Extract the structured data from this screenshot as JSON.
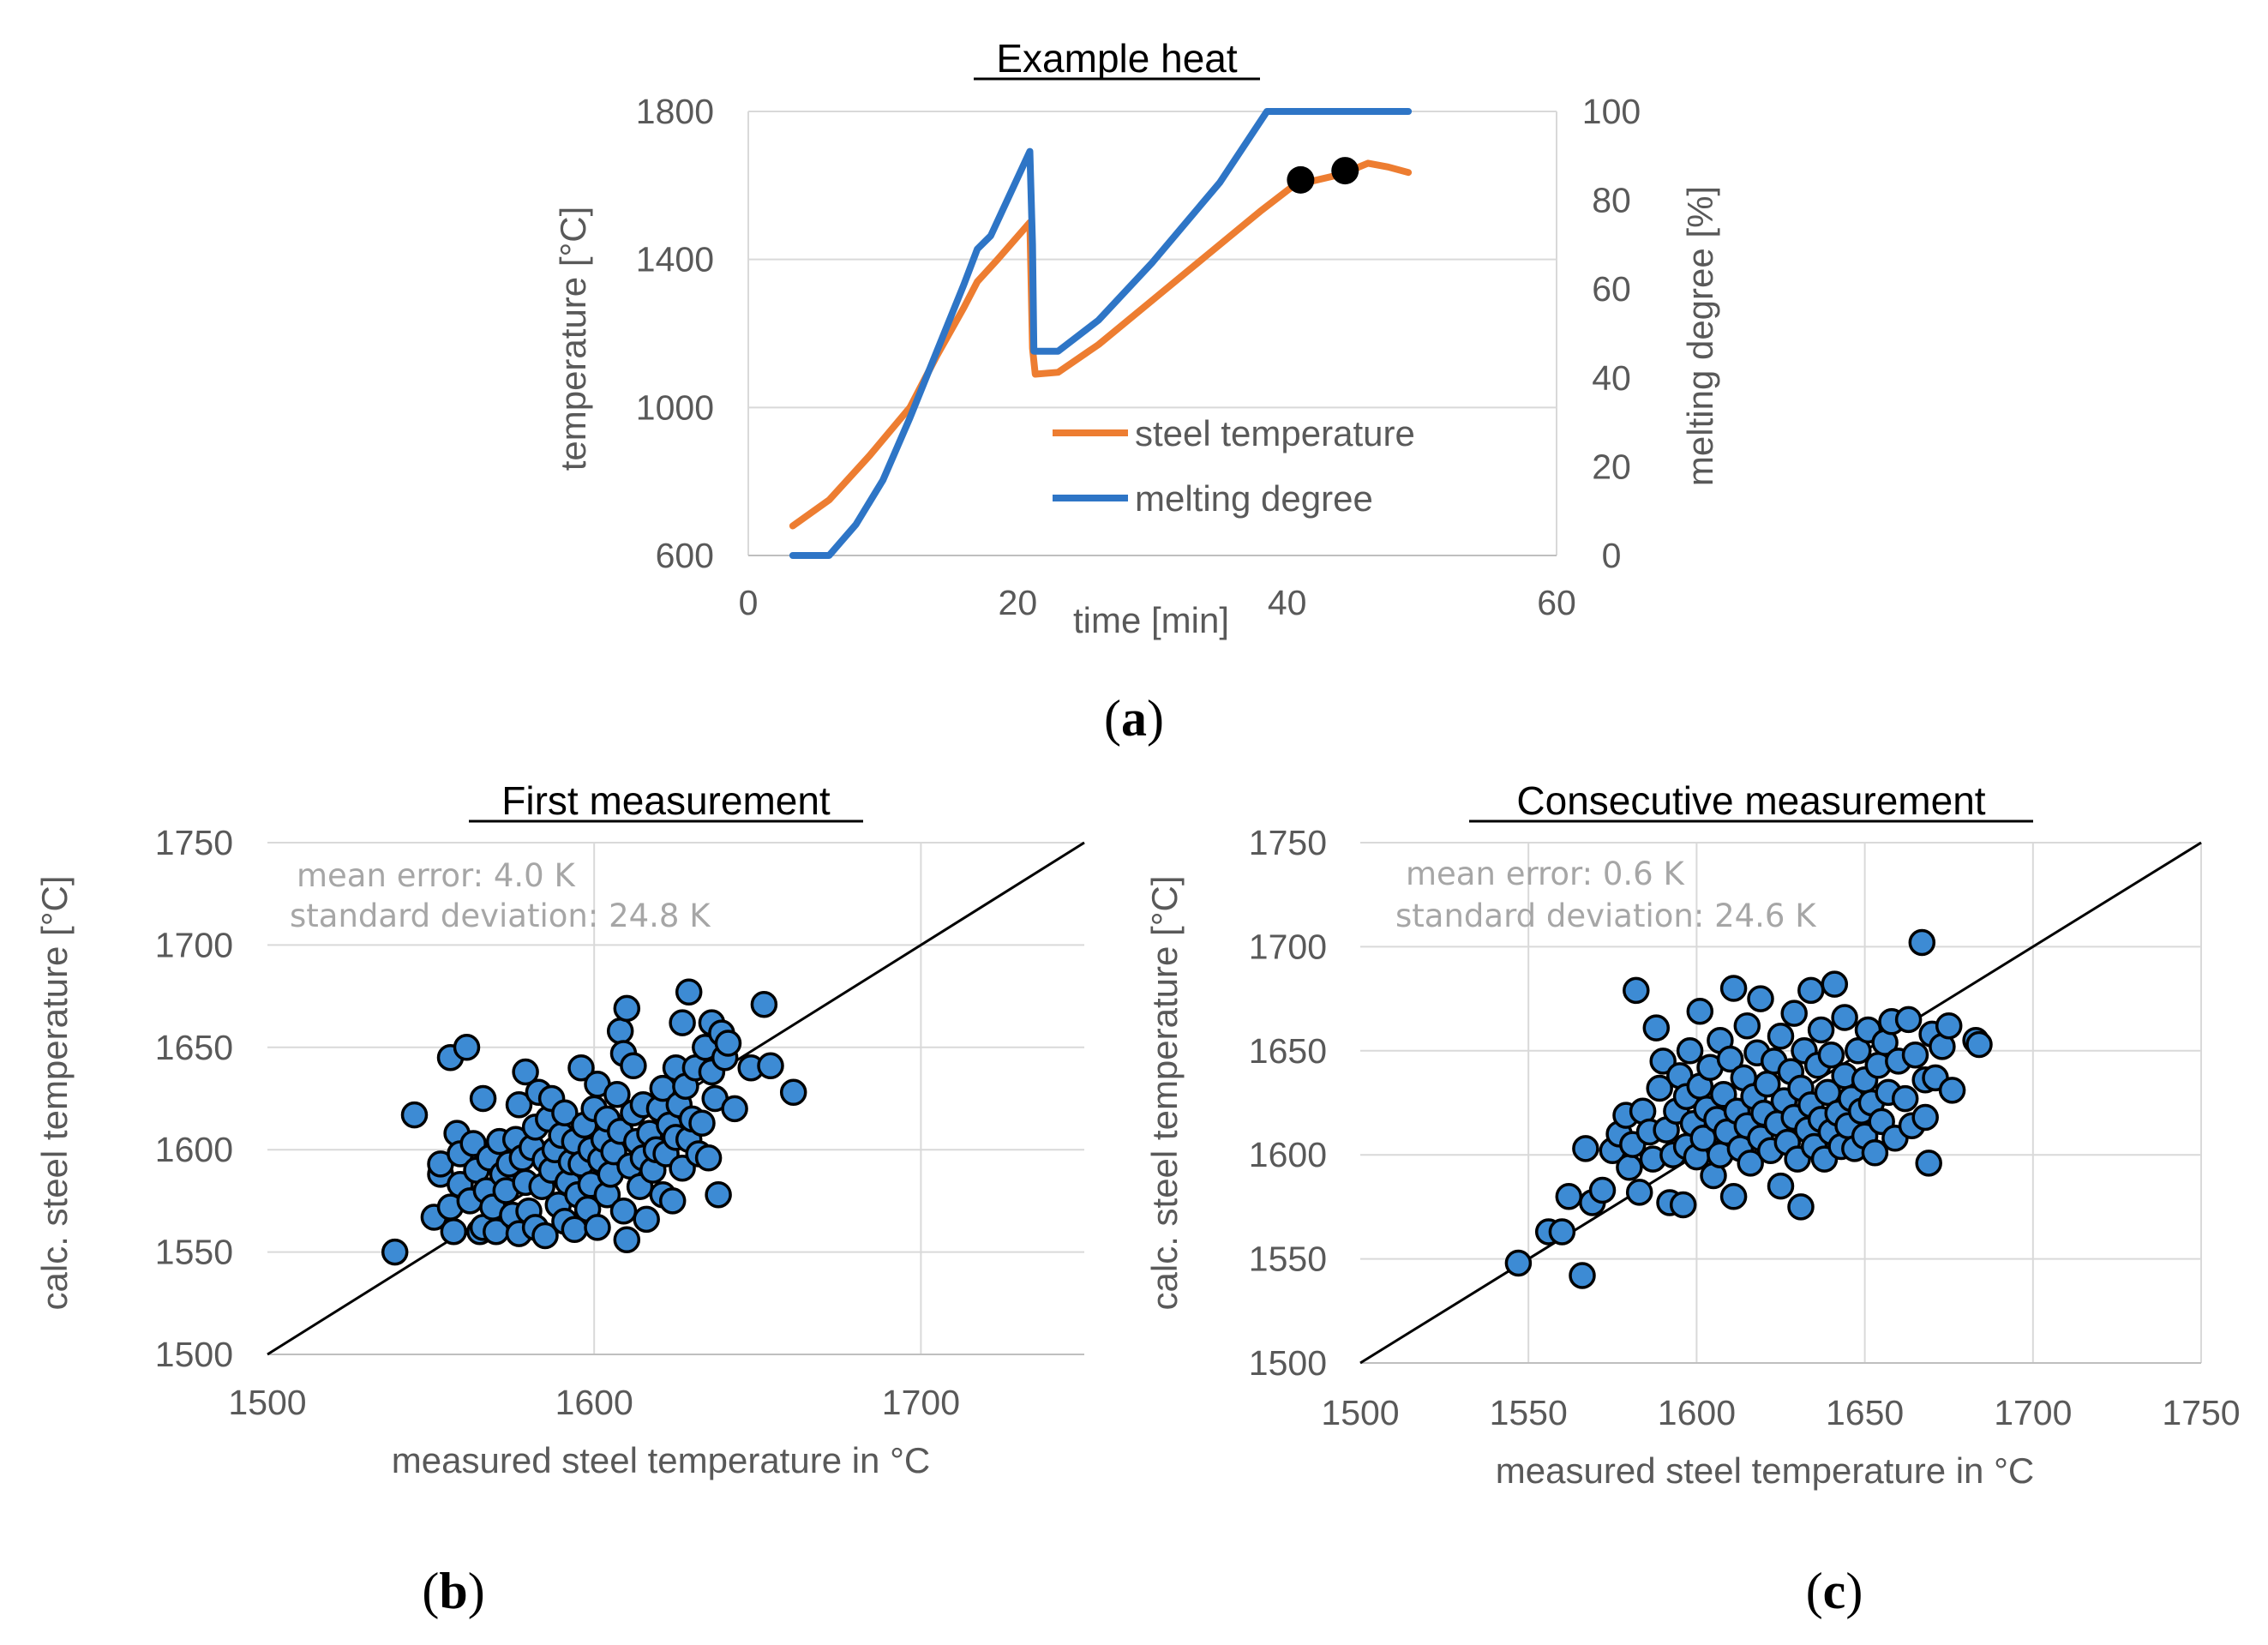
{
  "chart_data": [
    {
      "panel_label": "a",
      "type": "line",
      "title": "Example heat",
      "xlabel": "time [min]",
      "ylabel": "temperature [°C]",
      "y2label": "melting degree [%]",
      "xlim": [
        0,
        60
      ],
      "ylim": [
        600,
        1800
      ],
      "y2lim": [
        0,
        100
      ],
      "xticks": [
        0,
        20,
        40,
        60
      ],
      "yticks": [
        600,
        1000,
        1400,
        1800
      ],
      "y2ticks": [
        0,
        20,
        40,
        60,
        80,
        100
      ],
      "legend_position": "center-right",
      "colors": {
        "steel": "#ed7d31",
        "melting": "#2e75c6",
        "marker": "#000000",
        "grid": "#d9d9d9"
      },
      "series": [
        {
          "name": "steel temperature",
          "axis": "left",
          "points": [
            [
              3.3,
              680
            ],
            [
              6,
              750
            ],
            [
              9,
              870
            ],
            [
              12,
              1000
            ],
            [
              14,
              1140
            ],
            [
              16,
              1270
            ],
            [
              17,
              1340
            ],
            [
              18.5,
              1400
            ],
            [
              20.9,
              1500
            ],
            [
              21.1,
              1160
            ],
            [
              21.3,
              1090
            ],
            [
              23,
              1095
            ],
            [
              26,
              1170
            ],
            [
              30,
              1290
            ],
            [
              34,
              1410
            ],
            [
              38,
              1530
            ],
            [
              40.5,
              1600
            ],
            [
              44,
              1630
            ],
            [
              46,
              1660
            ],
            [
              47.5,
              1650
            ],
            [
              49,
              1635
            ]
          ]
        },
        {
          "name": "melting degree",
          "axis": "right",
          "points": [
            [
              3.3,
              0
            ],
            [
              6,
              0
            ],
            [
              8,
              7
            ],
            [
              10,
              17
            ],
            [
              12,
              31
            ],
            [
              14,
              46
            ],
            [
              16,
              61
            ],
            [
              17,
              69
            ],
            [
              18,
              72
            ],
            [
              20.9,
              91
            ],
            [
              21.1,
              70
            ],
            [
              21.2,
              46
            ],
            [
              23,
              46
            ],
            [
              26,
              53
            ],
            [
              30,
              66
            ],
            [
              35,
              84
            ],
            [
              38.5,
              100
            ],
            [
              49,
              100
            ]
          ]
        }
      ],
      "markers": [
        {
          "axis": "left",
          "x": 41,
          "y": 1615
        },
        {
          "axis": "left",
          "x": 44.3,
          "y": 1640
        }
      ]
    },
    {
      "panel_label": "b",
      "type": "scatter",
      "title": "First measurement",
      "xlabel": "measured steel temperature in °C",
      "ylabel": "calc. steel temperature [°C]",
      "xlim": [
        1500,
        1750
      ],
      "ylim": [
        1500,
        1750
      ],
      "xticks": [
        1500,
        1600,
        1700
      ],
      "yticks": [
        1500,
        1550,
        1600,
        1650,
        1700,
        1750
      ],
      "reference_line": "y = x",
      "stats": {
        "mean_error": "mean error: 4.0 K",
        "std_dev": "standard deviation: 24.8 K"
      },
      "marker_color": "#3d8bd4",
      "points": [
        [
          1539,
          1550
        ],
        [
          1545,
          1617
        ],
        [
          1551,
          1567
        ],
        [
          1553,
          1588
        ],
        [
          1553,
          1593
        ],
        [
          1556,
          1645
        ],
        [
          1556,
          1572
        ],
        [
          1557,
          1560
        ],
        [
          1558,
          1608
        ],
        [
          1559,
          1583
        ],
        [
          1559,
          1598
        ],
        [
          1561,
          1650
        ],
        [
          1562,
          1575
        ],
        [
          1563,
          1603
        ],
        [
          1564,
          1590
        ],
        [
          1565,
          1560
        ],
        [
          1566,
          1562
        ],
        [
          1566,
          1625
        ],
        [
          1567,
          1580
        ],
        [
          1568,
          1596
        ],
        [
          1569,
          1572
        ],
        [
          1570,
          1560
        ],
        [
          1571,
          1604
        ],
        [
          1572,
          1588
        ],
        [
          1573,
          1580
        ],
        [
          1574,
          1593
        ],
        [
          1575,
          1568
        ],
        [
          1576,
          1605
        ],
        [
          1577,
          1559
        ],
        [
          1577,
          1622
        ],
        [
          1578,
          1596
        ],
        [
          1579,
          1584
        ],
        [
          1579,
          1638
        ],
        [
          1580,
          1570
        ],
        [
          1581,
          1601
        ],
        [
          1582,
          1611
        ],
        [
          1582,
          1562
        ],
        [
          1583,
          1628
        ],
        [
          1584,
          1582
        ],
        [
          1585,
          1595
        ],
        [
          1585,
          1558
        ],
        [
          1586,
          1615
        ],
        [
          1587,
          1625
        ],
        [
          1587,
          1590
        ],
        [
          1588,
          1600
        ],
        [
          1589,
          1573
        ],
        [
          1590,
          1607
        ],
        [
          1591,
          1565
        ],
        [
          1591,
          1618
        ],
        [
          1592,
          1584
        ],
        [
          1593,
          1594
        ],
        [
          1594,
          1604
        ],
        [
          1594,
          1561
        ],
        [
          1595,
          1578
        ],
        [
          1596,
          1640
        ],
        [
          1596,
          1593
        ],
        [
          1597,
          1612
        ],
        [
          1598,
          1571
        ],
        [
          1599,
          1600
        ],
        [
          1599,
          1583
        ],
        [
          1600,
          1620
        ],
        [
          1601,
          1632
        ],
        [
          1601,
          1562
        ],
        [
          1602,
          1595
        ],
        [
          1603,
          1605
        ],
        [
          1604,
          1578
        ],
        [
          1604,
          1615
        ],
        [
          1605,
          1588
        ],
        [
          1606,
          1599
        ],
        [
          1607,
          1627
        ],
        [
          1608,
          1609
        ],
        [
          1608,
          1658
        ],
        [
          1609,
          1570
        ],
        [
          1609,
          1647
        ],
        [
          1610,
          1669
        ],
        [
          1610,
          1556
        ],
        [
          1611,
          1592
        ],
        [
          1612,
          1618
        ],
        [
          1612,
          1641
        ],
        [
          1613,
          1604
        ],
        [
          1614,
          1582
        ],
        [
          1615,
          1596
        ],
        [
          1615,
          1622
        ],
        [
          1616,
          1566
        ],
        [
          1617,
          1608
        ],
        [
          1618,
          1590
        ],
        [
          1619,
          1600
        ],
        [
          1620,
          1620
        ],
        [
          1621,
          1578
        ],
        [
          1621,
          1630
        ],
        [
          1622,
          1598
        ],
        [
          1623,
          1612
        ],
        [
          1624,
          1575
        ],
        [
          1625,
          1640
        ],
        [
          1625,
          1606
        ],
        [
          1626,
          1622
        ],
        [
          1627,
          1591
        ],
        [
          1627,
          1662
        ],
        [
          1628,
          1631
        ],
        [
          1629,
          1605
        ],
        [
          1629,
          1677
        ],
        [
          1630,
          1615
        ],
        [
          1631,
          1640
        ],
        [
          1632,
          1598
        ],
        [
          1633,
          1613
        ],
        [
          1634,
          1650
        ],
        [
          1635,
          1596
        ],
        [
          1636,
          1662
        ],
        [
          1636,
          1638
        ],
        [
          1637,
          1625
        ],
        [
          1638,
          1578
        ],
        [
          1639,
          1657
        ],
        [
          1640,
          1645
        ],
        [
          1641,
          1652
        ],
        [
          1643,
          1620
        ],
        [
          1648,
          1640
        ],
        [
          1652,
          1671
        ],
        [
          1654,
          1641
        ],
        [
          1661,
          1628
        ]
      ]
    },
    {
      "panel_label": "c",
      "type": "scatter",
      "title": "Consecutive measurement",
      "xlabel": "measured steel temperature in °C",
      "ylabel": "calc. steel temperature [°C]",
      "xlim": [
        1500,
        1750
      ],
      "ylim": [
        1500,
        1750
      ],
      "xticks": [
        1500,
        1550,
        1600,
        1650,
        1700,
        1750
      ],
      "yticks": [
        1500,
        1550,
        1600,
        1650,
        1700,
        1750
      ],
      "reference_line": "y = x",
      "stats": {
        "mean_error": "mean error: 0.6 K",
        "std_dev": "standard deviation: 24.6 K"
      },
      "marker_color": "#3d8bd4",
      "points": [
        [
          1547,
          1548
        ],
        [
          1556,
          1563
        ],
        [
          1560,
          1563
        ],
        [
          1562,
          1580
        ],
        [
          1566,
          1542
        ],
        [
          1567,
          1603
        ],
        [
          1569,
          1577
        ],
        [
          1572,
          1583
        ],
        [
          1575,
          1602
        ],
        [
          1577,
          1610
        ],
        [
          1579,
          1619
        ],
        [
          1580,
          1594
        ],
        [
          1581,
          1605
        ],
        [
          1582,
          1679
        ],
        [
          1583,
          1582
        ],
        [
          1584,
          1621
        ],
        [
          1586,
          1611
        ],
        [
          1587,
          1598
        ],
        [
          1588,
          1661
        ],
        [
          1589,
          1632
        ],
        [
          1590,
          1645
        ],
        [
          1591,
          1612
        ],
        [
          1592,
          1577
        ],
        [
          1593,
          1600
        ],
        [
          1594,
          1621
        ],
        [
          1595,
          1638
        ],
        [
          1596,
          1576
        ],
        [
          1597,
          1604
        ],
        [
          1597,
          1628
        ],
        [
          1598,
          1650
        ],
        [
          1599,
          1615
        ],
        [
          1600,
          1599
        ],
        [
          1601,
          1633
        ],
        [
          1601,
          1669
        ],
        [
          1602,
          1608
        ],
        [
          1603,
          1622
        ],
        [
          1604,
          1642
        ],
        [
          1605,
          1590
        ],
        [
          1606,
          1617
        ],
        [
          1607,
          1655
        ],
        [
          1607,
          1600
        ],
        [
          1608,
          1629
        ],
        [
          1609,
          1611
        ],
        [
          1610,
          1646
        ],
        [
          1611,
          1580
        ],
        [
          1611,
          1680
        ],
        [
          1612,
          1621
        ],
        [
          1613,
          1603
        ],
        [
          1614,
          1637
        ],
        [
          1615,
          1662
        ],
        [
          1615,
          1614
        ],
        [
          1616,
          1596
        ],
        [
          1617,
          1628
        ],
        [
          1618,
          1649
        ],
        [
          1619,
          1608
        ],
        [
          1619,
          1675
        ],
        [
          1620,
          1620
        ],
        [
          1621,
          1634
        ],
        [
          1622,
          1602
        ],
        [
          1623,
          1645
        ],
        [
          1624,
          1615
        ],
        [
          1625,
          1585
        ],
        [
          1625,
          1657
        ],
        [
          1626,
          1626
        ],
        [
          1627,
          1606
        ],
        [
          1628,
          1640
        ],
        [
          1629,
          1618
        ],
        [
          1629,
          1668
        ],
        [
          1630,
          1598
        ],
        [
          1631,
          1632
        ],
        [
          1631,
          1575
        ],
        [
          1632,
          1650
        ],
        [
          1633,
          1612
        ],
        [
          1634,
          1679
        ],
        [
          1634,
          1624
        ],
        [
          1635,
          1604
        ],
        [
          1636,
          1643
        ],
        [
          1637,
          1617
        ],
        [
          1637,
          1660
        ],
        [
          1638,
          1598
        ],
        [
          1639,
          1630
        ],
        [
          1640,
          1611
        ],
        [
          1640,
          1648
        ],
        [
          1641,
          1682
        ],
        [
          1642,
          1620
        ],
        [
          1643,
          1604
        ],
        [
          1644,
          1638
        ],
        [
          1644,
          1666
        ],
        [
          1645,
          1614
        ],
        [
          1646,
          1627
        ],
        [
          1647,
          1603
        ],
        [
          1648,
          1650
        ],
        [
          1649,
          1621
        ],
        [
          1650,
          1636
        ],
        [
          1650,
          1609
        ],
        [
          1651,
          1660
        ],
        [
          1652,
          1625
        ],
        [
          1653,
          1601
        ],
        [
          1654,
          1643
        ],
        [
          1655,
          1616
        ],
        [
          1656,
          1654
        ],
        [
          1657,
          1630
        ],
        [
          1658,
          1664
        ],
        [
          1659,
          1608
        ],
        [
          1660,
          1645
        ],
        [
          1662,
          1627
        ],
        [
          1663,
          1665
        ],
        [
          1664,
          1614
        ],
        [
          1665,
          1648
        ],
        [
          1667,
          1702
        ],
        [
          1668,
          1636
        ],
        [
          1668,
          1618
        ],
        [
          1669,
          1596
        ],
        [
          1670,
          1658
        ],
        [
          1671,
          1637
        ],
        [
          1673,
          1652
        ],
        [
          1675,
          1662
        ],
        [
          1676,
          1631
        ],
        [
          1683,
          1655
        ],
        [
          1684,
          1653
        ]
      ]
    }
  ]
}
